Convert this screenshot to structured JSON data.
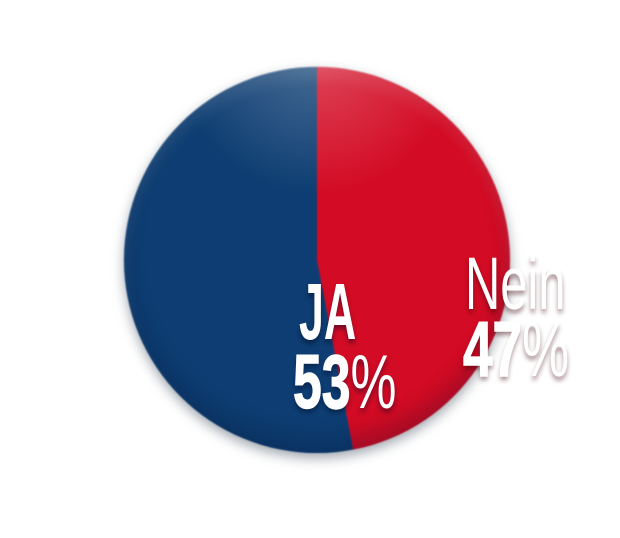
{
  "chart_data": {
    "type": "pie",
    "slices": [
      {
        "label": "JA",
        "value": 53,
        "value_label": "53%",
        "color": "#0d3d72"
      },
      {
        "label": "Nein",
        "value": 47,
        "value_label": "47%",
        "color": "#d30b24"
      }
    ],
    "order_clockwise_from_top": [
      "Nein",
      "JA"
    ],
    "start_angle_deg": 0,
    "labels_position": "inside-slices",
    "text_color": "#ffffff",
    "background_color": "#ffffff",
    "legend": "none",
    "ja_pct_digits": "53",
    "nein_pct_digits": "47",
    "pct_sign": "%"
  }
}
